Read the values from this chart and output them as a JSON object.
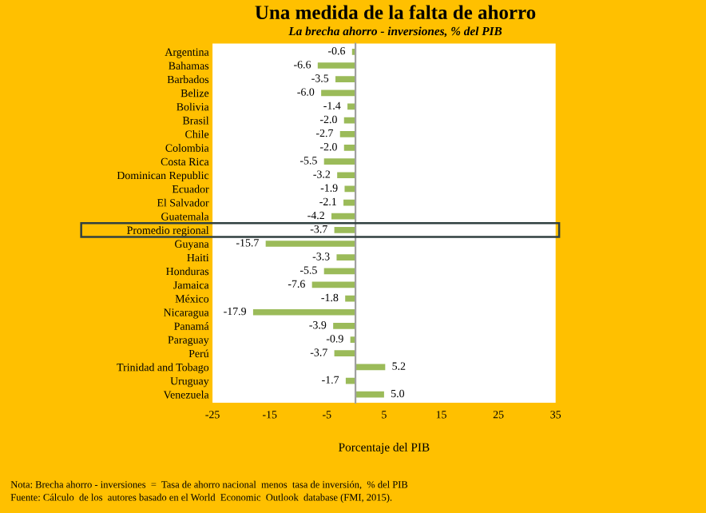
{
  "chart_data": {
    "type": "bar",
    "orientation": "horizontal",
    "title": "Una medida de la falta de ahorro",
    "subtitle": "La brecha ahorro - inversiones, % del PIB",
    "xlabel": "Porcentaje del PIB",
    "categories": [
      "Argentina",
      "Bahamas",
      "Barbados",
      "Belize",
      "Bolivia",
      "Brasil",
      "Chile",
      "Colombia",
      "Costa Rica",
      "Dominican Republic",
      "Ecuador",
      "El Salvador",
      "Guatemala",
      "Promedio regional",
      "Guyana",
      "Haiti",
      "Honduras",
      "Jamaica",
      "México",
      "Nicaragua",
      "Panamá",
      "Paraguay",
      "Perú",
      "Trinidad and Tobago",
      "Uruguay",
      "Venezuela"
    ],
    "values": [
      -0.6,
      -6.6,
      -3.5,
      -6.0,
      -1.4,
      -2.0,
      -2.7,
      -2.0,
      -5.5,
      -3.2,
      -1.9,
      -2.1,
      -4.2,
      -3.7,
      -15.7,
      -3.3,
      -5.5,
      -7.6,
      -1.8,
      -17.9,
      -3.9,
      -0.9,
      -3.7,
      5.2,
      -1.7,
      5.0
    ],
    "color": "#9bbb59",
    "value_labels": [
      "-0.6",
      "-6.6",
      "-3.5",
      "-6.0",
      "-1.4",
      "-2.0",
      "-2.7",
      "-2.0",
      "-5.5",
      "-3.2",
      "-1.9",
      "-2.1",
      "-4.2",
      "-3.7",
      "-15.7",
      "-3.3",
      "-5.5",
      "-7.6",
      "-1.8",
      "-17.9",
      "-3.9",
      "-0.9",
      "-3.7",
      "5.2",
      "-1.7",
      "5.0"
    ],
    "xlim": [
      -25,
      35
    ],
    "xticks": [
      -25,
      -15,
      -5,
      5,
      15,
      25,
      35
    ],
    "grid": false,
    "legend": false,
    "annotations": [
      "Nota: Brecha ahorro - inversiones  =  Tasa de ahorro nacional  menos  tasa de inversión,  % del PIB",
      "Fuente: Cálculo  de los  autores basado en el World  Economic  Outlook  database (FMI, 2015)."
    ]
  }
}
